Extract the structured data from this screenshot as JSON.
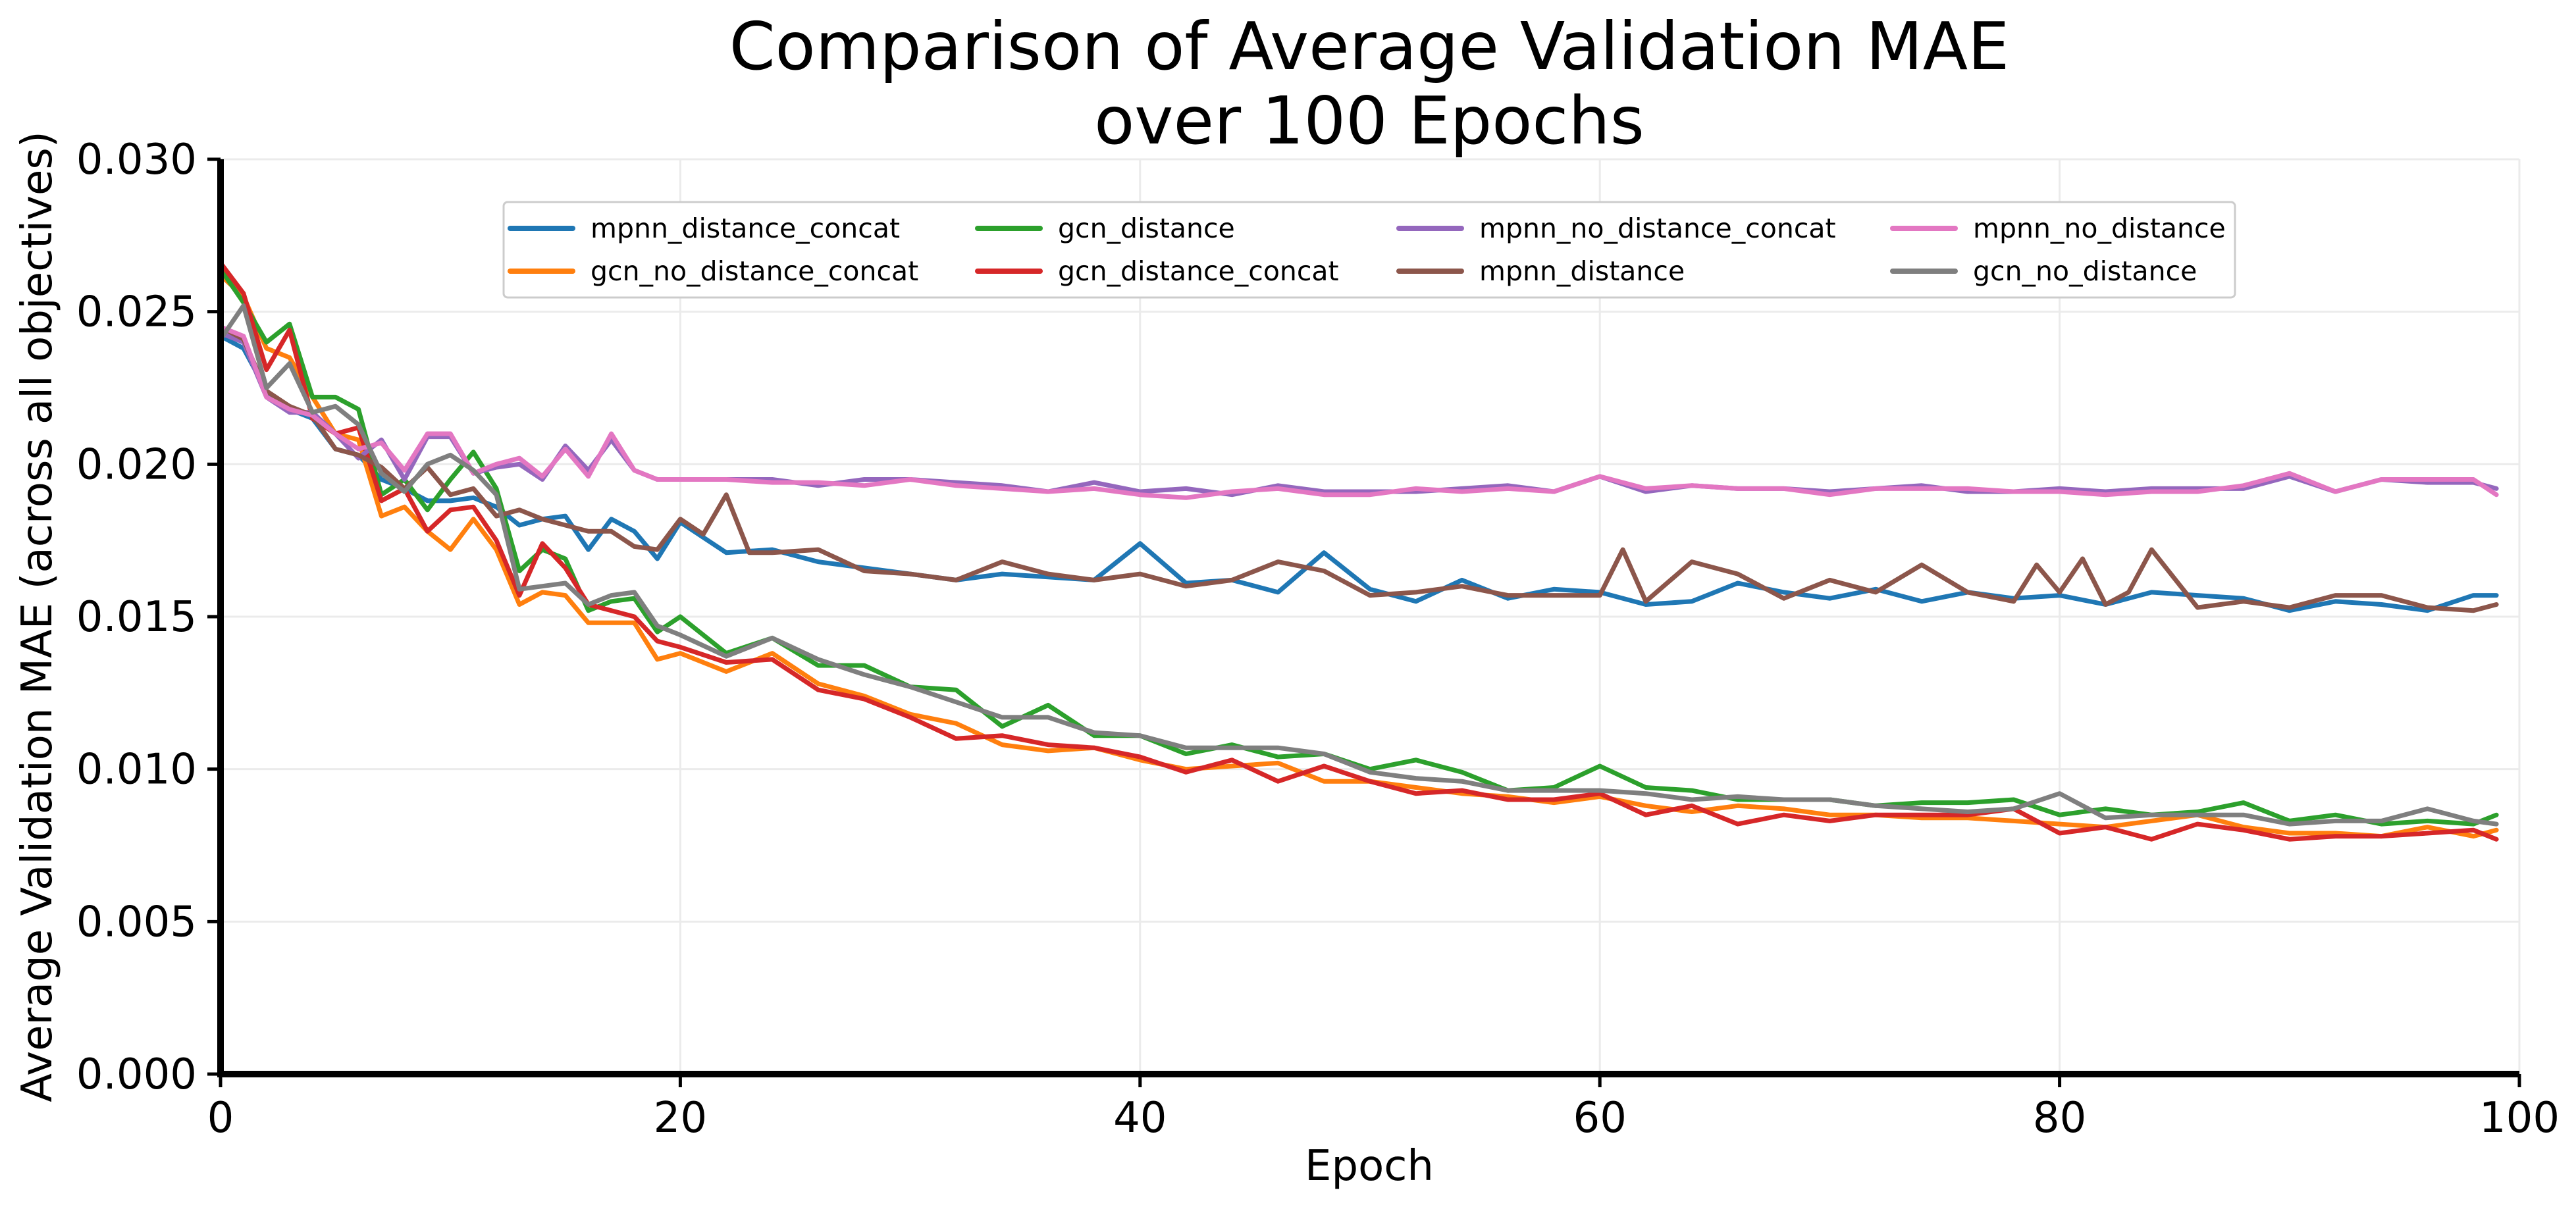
{
  "chart_data": {
    "type": "line",
    "title": [
      "Comparison of Average Validation MAE",
      "over 100 Epochs"
    ],
    "xlabel": "Epoch",
    "ylabel": "Average Validation MAE (across all objectives)",
    "xlim": [
      0,
      100
    ],
    "ylim": [
      0,
      0.03
    ],
    "xticks": [
      0,
      20,
      40,
      60,
      80,
      100
    ],
    "xtick_labels": [
      "0",
      "20",
      "40",
      "60",
      "80",
      "100"
    ],
    "yticks": [
      0,
      0.005,
      0.01,
      0.015,
      0.02,
      0.025,
      0.03
    ],
    "ytick_labels": [
      "0.000",
      "0.005",
      "0.010",
      "0.015",
      "0.020",
      "0.025",
      "0.030"
    ],
    "grid": true,
    "legend": "top-center, 4 columns",
    "series": [
      {
        "name": "mpnn_distance_concat",
        "color": "#1f77b4",
        "x": [
          0,
          1,
          2,
          3,
          4,
          5,
          6,
          7,
          8,
          9,
          10,
          11,
          12,
          13,
          14,
          15,
          16,
          17,
          18,
          19,
          20,
          22,
          24,
          26,
          28,
          30,
          32,
          34,
          36,
          38,
          40,
          42,
          44,
          46,
          48,
          50,
          52,
          54,
          56,
          58,
          60,
          62,
          64,
          66,
          68,
          70,
          72,
          74,
          76,
          78,
          80,
          82,
          84,
          86,
          88,
          90,
          92,
          94,
          96,
          98,
          99
        ],
        "y": [
          0.0242,
          0.0238,
          0.0224,
          0.0218,
          0.0215,
          0.0205,
          0.0203,
          0.0195,
          0.0192,
          0.0188,
          0.0188,
          0.0189,
          0.0186,
          0.018,
          0.0182,
          0.0183,
          0.0172,
          0.0182,
          0.0178,
          0.0169,
          0.0181,
          0.0171,
          0.0172,
          0.0168,
          0.0166,
          0.0164,
          0.0162,
          0.0164,
          0.0163,
          0.0162,
          0.0174,
          0.0161,
          0.0162,
          0.0158,
          0.0171,
          0.0159,
          0.0155,
          0.0162,
          0.0156,
          0.0159,
          0.0158,
          0.0154,
          0.0155,
          0.0161,
          0.0158,
          0.0156,
          0.0159,
          0.0155,
          0.0158,
          0.0156,
          0.0157,
          0.0154,
          0.0158,
          0.0157,
          0.0156,
          0.0152,
          0.0155,
          0.0154,
          0.0152,
          0.0157,
          0.0157
        ]
      },
      {
        "name": "gcn_no_distance_concat",
        "color": "#ff7f0e",
        "x": [
          0,
          1,
          2,
          3,
          4,
          5,
          6,
          7,
          8,
          9,
          10,
          11,
          12,
          13,
          14,
          15,
          16,
          17,
          18,
          19,
          20,
          22,
          24,
          26,
          28,
          30,
          32,
          34,
          36,
          38,
          40,
          42,
          44,
          46,
          48,
          50,
          52,
          54,
          56,
          58,
          60,
          62,
          64,
          66,
          68,
          70,
          72,
          74,
          76,
          78,
          80,
          82,
          84,
          86,
          88,
          90,
          92,
          94,
          96,
          98,
          99
        ],
        "y": [
          0.0262,
          0.0255,
          0.0238,
          0.0235,
          0.0222,
          0.021,
          0.0208,
          0.0183,
          0.0186,
          0.0178,
          0.0172,
          0.0182,
          0.0172,
          0.0154,
          0.0158,
          0.0157,
          0.0148,
          0.0148,
          0.0148,
          0.0136,
          0.0138,
          0.0132,
          0.0138,
          0.0128,
          0.0124,
          0.0118,
          0.0115,
          0.0108,
          0.0106,
          0.0107,
          0.0103,
          0.01,
          0.0101,
          0.0102,
          0.0096,
          0.0096,
          0.0094,
          0.0092,
          0.0091,
          0.0089,
          0.0091,
          0.0088,
          0.0086,
          0.0088,
          0.0087,
          0.0085,
          0.0085,
          0.0084,
          0.0084,
          0.0083,
          0.0082,
          0.0081,
          0.0083,
          0.0085,
          0.0081,
          0.0079,
          0.0079,
          0.0078,
          0.0081,
          0.0078,
          0.008
        ]
      },
      {
        "name": "gcn_distance",
        "color": "#2ca02c",
        "x": [
          0,
          1,
          2,
          3,
          4,
          5,
          6,
          7,
          8,
          9,
          10,
          11,
          12,
          13,
          14,
          15,
          16,
          17,
          18,
          19,
          20,
          22,
          24,
          26,
          28,
          30,
          32,
          34,
          36,
          38,
          40,
          42,
          44,
          46,
          48,
          50,
          52,
          54,
          56,
          58,
          60,
          62,
          64,
          66,
          68,
          70,
          72,
          74,
          76,
          78,
          80,
          82,
          84,
          86,
          88,
          90,
          92,
          94,
          96,
          98,
          99
        ],
        "y": [
          0.0264,
          0.0253,
          0.024,
          0.0246,
          0.0222,
          0.0222,
          0.0218,
          0.019,
          0.0195,
          0.0185,
          0.0195,
          0.0204,
          0.0192,
          0.0165,
          0.0172,
          0.0169,
          0.0152,
          0.0155,
          0.0156,
          0.0145,
          0.015,
          0.0138,
          0.0143,
          0.0134,
          0.0134,
          0.0127,
          0.0126,
          0.0114,
          0.0121,
          0.0111,
          0.0111,
          0.0105,
          0.0108,
          0.0104,
          0.0105,
          0.01,
          0.0103,
          0.0099,
          0.0093,
          0.0094,
          0.0101,
          0.0094,
          0.0093,
          0.009,
          0.009,
          0.009,
          0.0088,
          0.0089,
          0.0089,
          0.009,
          0.0085,
          0.0087,
          0.0085,
          0.0086,
          0.0089,
          0.0083,
          0.0085,
          0.0082,
          0.0083,
          0.0082,
          0.0085
        ]
      },
      {
        "name": "gcn_distance_concat",
        "color": "#d62728",
        "x": [
          0,
          1,
          2,
          3,
          4,
          5,
          6,
          7,
          8,
          9,
          10,
          11,
          12,
          13,
          14,
          15,
          16,
          17,
          18,
          19,
          20,
          22,
          24,
          26,
          28,
          30,
          32,
          34,
          36,
          38,
          40,
          42,
          44,
          46,
          48,
          50,
          52,
          54,
          56,
          58,
          60,
          62,
          64,
          66,
          68,
          70,
          72,
          74,
          76,
          78,
          80,
          82,
          84,
          86,
          88,
          90,
          92,
          94,
          96,
          98,
          99
        ],
        "y": [
          0.0266,
          0.0256,
          0.0231,
          0.0244,
          0.0215,
          0.021,
          0.0212,
          0.0188,
          0.0192,
          0.0178,
          0.0185,
          0.0186,
          0.0175,
          0.0157,
          0.0174,
          0.0166,
          0.0154,
          0.0152,
          0.015,
          0.0142,
          0.014,
          0.0135,
          0.0136,
          0.0126,
          0.0123,
          0.0117,
          0.011,
          0.0111,
          0.0108,
          0.0107,
          0.0104,
          0.0099,
          0.0103,
          0.0096,
          0.0101,
          0.0096,
          0.0092,
          0.0093,
          0.009,
          0.009,
          0.0092,
          0.0085,
          0.0088,
          0.0082,
          0.0085,
          0.0083,
          0.0085,
          0.0085,
          0.0085,
          0.0087,
          0.0079,
          0.0081,
          0.0077,
          0.0082,
          0.008,
          0.0077,
          0.0078,
          0.0078,
          0.0079,
          0.008,
          0.0077
        ]
      },
      {
        "name": "mpnn_no_distance_concat",
        "color": "#9467bd",
        "x": [
          0,
          1,
          2,
          3,
          4,
          5,
          6,
          7,
          8,
          9,
          10,
          11,
          12,
          13,
          14,
          15,
          16,
          17,
          18,
          19,
          20,
          22,
          24,
          26,
          28,
          30,
          32,
          34,
          36,
          38,
          40,
          42,
          44,
          46,
          48,
          50,
          52,
          54,
          56,
          58,
          60,
          62,
          64,
          66,
          68,
          70,
          72,
          74,
          76,
          78,
          80,
          82,
          84,
          86,
          88,
          90,
          92,
          94,
          96,
          98,
          99
        ],
        "y": [
          0.0243,
          0.024,
          0.0222,
          0.0217,
          0.0217,
          0.021,
          0.0202,
          0.0208,
          0.0195,
          0.0209,
          0.0209,
          0.0197,
          0.0199,
          0.02,
          0.0195,
          0.0206,
          0.0198,
          0.0208,
          0.0198,
          0.0195,
          0.0195,
          0.0195,
          0.0195,
          0.0193,
          0.0195,
          0.0195,
          0.0194,
          0.0193,
          0.0191,
          0.0194,
          0.0191,
          0.0192,
          0.019,
          0.0193,
          0.0191,
          0.0191,
          0.0191,
          0.0192,
          0.0193,
          0.0191,
          0.0196,
          0.0191,
          0.0193,
          0.0192,
          0.0192,
          0.0191,
          0.0192,
          0.0193,
          0.0191,
          0.0191,
          0.0192,
          0.0191,
          0.0192,
          0.0192,
          0.0192,
          0.0196,
          0.0191,
          0.0195,
          0.0194,
          0.0194,
          0.0192
        ]
      },
      {
        "name": "mpnn_distance",
        "color": "#8c564b",
        "x": [
          0,
          1,
          2,
          3,
          4,
          5,
          6,
          7,
          8,
          9,
          10,
          11,
          12,
          13,
          14,
          15,
          16,
          17,
          18,
          19,
          20,
          21,
          22,
          23,
          24,
          26,
          28,
          30,
          32,
          34,
          36,
          38,
          40,
          42,
          44,
          46,
          48,
          50,
          52,
          54,
          56,
          58,
          60,
          61,
          62,
          64,
          66,
          68,
          70,
          72,
          74,
          76,
          78,
          79,
          80,
          81,
          82,
          83,
          84,
          86,
          88,
          90,
          92,
          94,
          96,
          98,
          99
        ],
        "y": [
          0.0245,
          0.0241,
          0.0224,
          0.0219,
          0.0216,
          0.0205,
          0.0203,
          0.0199,
          0.0192,
          0.0199,
          0.019,
          0.0192,
          0.0183,
          0.0185,
          0.0182,
          0.018,
          0.0178,
          0.0178,
          0.0173,
          0.0172,
          0.0182,
          0.0177,
          0.019,
          0.0171,
          0.0171,
          0.0172,
          0.0165,
          0.0164,
          0.0162,
          0.0168,
          0.0164,
          0.0162,
          0.0164,
          0.016,
          0.0162,
          0.0168,
          0.0165,
          0.0157,
          0.0158,
          0.016,
          0.0157,
          0.0157,
          0.0157,
          0.0172,
          0.0155,
          0.0168,
          0.0164,
          0.0156,
          0.0162,
          0.0158,
          0.0167,
          0.0158,
          0.0155,
          0.0167,
          0.0158,
          0.0169,
          0.0154,
          0.0158,
          0.0172,
          0.0153,
          0.0155,
          0.0153,
          0.0157,
          0.0157,
          0.0153,
          0.0152,
          0.0154
        ]
      },
      {
        "name": "mpnn_no_distance",
        "color": "#e377c2",
        "x": [
          0,
          1,
          2,
          3,
          4,
          5,
          6,
          7,
          8,
          9,
          10,
          11,
          12,
          13,
          14,
          15,
          16,
          17,
          18,
          19,
          20,
          22,
          24,
          26,
          28,
          30,
          32,
          34,
          36,
          38,
          40,
          42,
          44,
          46,
          48,
          50,
          52,
          54,
          56,
          58,
          60,
          62,
          64,
          66,
          68,
          70,
          72,
          74,
          76,
          78,
          80,
          82,
          84,
          86,
          88,
          90,
          92,
          94,
          96,
          98,
          99
        ],
        "y": [
          0.0245,
          0.0242,
          0.0222,
          0.0218,
          0.0216,
          0.021,
          0.0205,
          0.0207,
          0.0198,
          0.021,
          0.021,
          0.0197,
          0.02,
          0.0202,
          0.0196,
          0.0205,
          0.0196,
          0.021,
          0.0198,
          0.0195,
          0.0195,
          0.0195,
          0.0194,
          0.0194,
          0.0193,
          0.0195,
          0.0193,
          0.0192,
          0.0191,
          0.0192,
          0.019,
          0.0189,
          0.0191,
          0.0192,
          0.019,
          0.019,
          0.0192,
          0.0191,
          0.0192,
          0.0191,
          0.0196,
          0.0192,
          0.0193,
          0.0192,
          0.0192,
          0.019,
          0.0192,
          0.0192,
          0.0192,
          0.0191,
          0.0191,
          0.019,
          0.0191,
          0.0191,
          0.0193,
          0.0197,
          0.0191,
          0.0195,
          0.0195,
          0.0195,
          0.019
        ]
      },
      {
        "name": "gcn_no_distance",
        "color": "#7f7f7f",
        "x": [
          0,
          1,
          2,
          3,
          4,
          5,
          6,
          7,
          8,
          9,
          10,
          11,
          12,
          13,
          14,
          15,
          16,
          17,
          18,
          19,
          20,
          22,
          24,
          26,
          28,
          30,
          32,
          34,
          36,
          38,
          40,
          42,
          44,
          46,
          48,
          50,
          52,
          54,
          56,
          58,
          60,
          62,
          64,
          66,
          68,
          70,
          72,
          74,
          76,
          78,
          80,
          82,
          84,
          86,
          88,
          90,
          92,
          94,
          96,
          98,
          99
        ],
        "y": [
          0.0241,
          0.0252,
          0.0225,
          0.0233,
          0.0217,
          0.0219,
          0.0213,
          0.0197,
          0.0191,
          0.02,
          0.0203,
          0.0198,
          0.019,
          0.0159,
          0.016,
          0.0161,
          0.0154,
          0.0157,
          0.0158,
          0.0147,
          0.0144,
          0.0137,
          0.0143,
          0.0136,
          0.0131,
          0.0127,
          0.0122,
          0.0117,
          0.0117,
          0.0112,
          0.0111,
          0.0107,
          0.0107,
          0.0107,
          0.0105,
          0.0099,
          0.0097,
          0.0096,
          0.0093,
          0.0093,
          0.0093,
          0.0092,
          0.009,
          0.0091,
          0.009,
          0.009,
          0.0088,
          0.0087,
          0.0086,
          0.0087,
          0.0092,
          0.0084,
          0.0085,
          0.0085,
          0.0085,
          0.0082,
          0.0083,
          0.0083,
          0.0087,
          0.0083,
          0.0082
        ]
      }
    ]
  }
}
